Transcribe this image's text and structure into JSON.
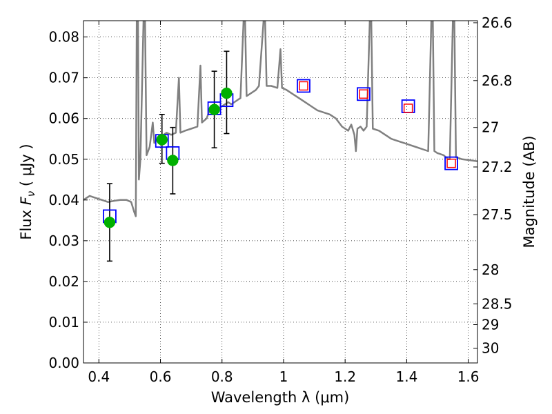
{
  "chart_data": {
    "type": "scatter",
    "xlabel": "Wavelength  λ (μm)",
    "ylabel_prefix": "Flux  ",
    "ylabel_symbol": "F",
    "ylabel_subscript": "ν",
    "ylabel_units": " ( μJy )",
    "right_ylabel": "Magnitude (AB)",
    "xlim": [
      0.35,
      1.63
    ],
    "ylim": [
      0.0,
      0.084
    ],
    "grid": true,
    "x_ticks": [
      {
        "value": 0.4,
        "label": "0.4"
      },
      {
        "value": 0.6,
        "label": "0.6"
      },
      {
        "value": 0.8,
        "label": "0.8"
      },
      {
        "value": 1.0,
        "label": "1"
      },
      {
        "value": 1.2,
        "label": "1.2"
      },
      {
        "value": 1.4,
        "label": "1.4"
      },
      {
        "value": 1.6,
        "label": "1.6"
      }
    ],
    "y_ticks": [
      {
        "value": 0.0,
        "label": "0.00"
      },
      {
        "value": 0.01,
        "label": "0.01"
      },
      {
        "value": 0.02,
        "label": "0.02"
      },
      {
        "value": 0.03,
        "label": "0.03"
      },
      {
        "value": 0.04,
        "label": "0.04"
      },
      {
        "value": 0.05,
        "label": "0.05"
      },
      {
        "value": 0.06,
        "label": "0.06"
      },
      {
        "value": 0.07,
        "label": "0.07"
      },
      {
        "value": 0.08,
        "label": "0.08"
      }
    ],
    "right_ticks": [
      {
        "label": "26.6",
        "flux": 0.0835
      },
      {
        "label": "26.8",
        "flux": 0.0693
      },
      {
        "label": "27",
        "flux": 0.0578
      },
      {
        "label": "27.2",
        "flux": 0.0481
      },
      {
        "label": "27.5",
        "flux": 0.0364
      },
      {
        "label": "28",
        "flux": 0.0229
      },
      {
        "label": "28.5",
        "flux": 0.0145
      },
      {
        "label": "29",
        "flux": 0.0094
      },
      {
        "label": "30",
        "flux": 0.0036
      }
    ],
    "series": [
      {
        "kind": "model_spectrum",
        "color": "#808080",
        "points": [
          [
            0.35,
            0.04
          ],
          [
            0.37,
            0.041
          ],
          [
            0.39,
            0.0405
          ],
          [
            0.41,
            0.04
          ],
          [
            0.43,
            0.0395
          ],
          [
            0.45,
            0.0398
          ],
          [
            0.47,
            0.04
          ],
          [
            0.49,
            0.04
          ],
          [
            0.505,
            0.0395
          ],
          [
            0.515,
            0.037
          ],
          [
            0.52,
            0.036
          ],
          [
            0.523,
            0.084
          ],
          [
            0.527,
            0.084
          ],
          [
            0.53,
            0.045
          ],
          [
            0.535,
            0.05
          ],
          [
            0.545,
            0.084
          ],
          [
            0.55,
            0.084
          ],
          [
            0.555,
            0.051
          ],
          [
            0.565,
            0.053
          ],
          [
            0.575,
            0.059
          ],
          [
            0.58,
            0.054
          ],
          [
            0.59,
            0.055
          ],
          [
            0.6,
            0.0555
          ],
          [
            0.61,
            0.056
          ],
          [
            0.62,
            0.0565
          ],
          [
            0.635,
            0.056
          ],
          [
            0.65,
            0.0565
          ],
          [
            0.66,
            0.07
          ],
          [
            0.665,
            0.0565
          ],
          [
            0.68,
            0.057
          ],
          [
            0.7,
            0.0575
          ],
          [
            0.72,
            0.058
          ],
          [
            0.73,
            0.073
          ],
          [
            0.735,
            0.059
          ],
          [
            0.75,
            0.06
          ],
          [
            0.76,
            0.062
          ],
          [
            0.77,
            0.061
          ],
          [
            0.78,
            0.062
          ],
          [
            0.79,
            0.0625
          ],
          [
            0.8,
            0.063
          ],
          [
            0.81,
            0.0635
          ],
          [
            0.82,
            0.064
          ],
          [
            0.83,
            0.0635
          ],
          [
            0.84,
            0.064
          ],
          [
            0.85,
            0.0645
          ],
          [
            0.86,
            0.065
          ],
          [
            0.87,
            0.084
          ],
          [
            0.875,
            0.084
          ],
          [
            0.88,
            0.0655
          ],
          [
            0.89,
            0.066
          ],
          [
            0.9,
            0.0665
          ],
          [
            0.91,
            0.067
          ],
          [
            0.92,
            0.068
          ],
          [
            0.935,
            0.084
          ],
          [
            0.94,
            0.084
          ],
          [
            0.945,
            0.068
          ],
          [
            0.96,
            0.068
          ],
          [
            0.98,
            0.0675
          ],
          [
            0.99,
            0.077
          ],
          [
            0.995,
            0.0675
          ],
          [
            1.01,
            0.067
          ],
          [
            1.03,
            0.066
          ],
          [
            1.05,
            0.065
          ],
          [
            1.07,
            0.064
          ],
          [
            1.09,
            0.063
          ],
          [
            1.11,
            0.062
          ],
          [
            1.13,
            0.0615
          ],
          [
            1.15,
            0.061
          ],
          [
            1.17,
            0.06
          ],
          [
            1.18,
            0.059
          ],
          [
            1.19,
            0.058
          ],
          [
            1.21,
            0.057
          ],
          [
            1.22,
            0.0585
          ],
          [
            1.23,
            0.056
          ],
          [
            1.235,
            0.052
          ],
          [
            1.24,
            0.0575
          ],
          [
            1.25,
            0.058
          ],
          [
            1.26,
            0.057
          ],
          [
            1.27,
            0.058
          ],
          [
            1.28,
            0.084
          ],
          [
            1.285,
            0.084
          ],
          [
            1.29,
            0.0575
          ],
          [
            1.31,
            0.057
          ],
          [
            1.33,
            0.056
          ],
          [
            1.35,
            0.055
          ],
          [
            1.37,
            0.0545
          ],
          [
            1.39,
            0.054
          ],
          [
            1.41,
            0.0535
          ],
          [
            1.43,
            0.053
          ],
          [
            1.45,
            0.0525
          ],
          [
            1.47,
            0.052
          ],
          [
            1.48,
            0.084
          ],
          [
            1.485,
            0.084
          ],
          [
            1.49,
            0.052
          ],
          [
            1.5,
            0.0515
          ],
          [
            1.52,
            0.051
          ],
          [
            1.535,
            0.05
          ],
          [
            1.54,
            0.05
          ],
          [
            1.55,
            0.084
          ],
          [
            1.555,
            0.084
          ],
          [
            1.56,
            0.0505
          ],
          [
            1.58,
            0.05
          ],
          [
            1.6,
            0.0498
          ],
          [
            1.63,
            0.0495
          ]
        ]
      },
      {
        "kind": "model_photometry",
        "marker": "open-square",
        "color": "#0000ff",
        "points": [
          [
            0.435,
            0.036
          ],
          [
            0.605,
            0.0545
          ],
          [
            0.64,
            0.0515
          ],
          [
            0.775,
            0.0625
          ],
          [
            0.815,
            0.0645
          ],
          [
            1.065,
            0.068
          ],
          [
            1.26,
            0.066
          ],
          [
            1.405,
            0.063
          ],
          [
            1.545,
            0.049
          ]
        ]
      },
      {
        "kind": "upper_limits",
        "marker": "open-square",
        "color": "#ff0000",
        "points": [
          [
            1.065,
            0.068
          ],
          [
            1.26,
            0.066
          ],
          [
            1.405,
            0.0625
          ],
          [
            1.545,
            0.049
          ]
        ]
      },
      {
        "kind": "observed",
        "marker": "filled-circle",
        "color": "#00b000",
        "points": [
          {
            "x": 0.435,
            "y": 0.0345,
            "ylo": 0.025,
            "yhi": 0.044
          },
          {
            "x": 0.605,
            "y": 0.0548,
            "ylo": 0.049,
            "yhi": 0.061
          },
          {
            "x": 0.64,
            "y": 0.0497,
            "ylo": 0.0415,
            "yhi": 0.0578
          },
          {
            "x": 0.775,
            "y": 0.0622,
            "ylo": 0.0528,
            "yhi": 0.0716
          },
          {
            "x": 0.815,
            "y": 0.0662,
            "ylo": 0.0563,
            "yhi": 0.0765
          }
        ]
      }
    ]
  }
}
